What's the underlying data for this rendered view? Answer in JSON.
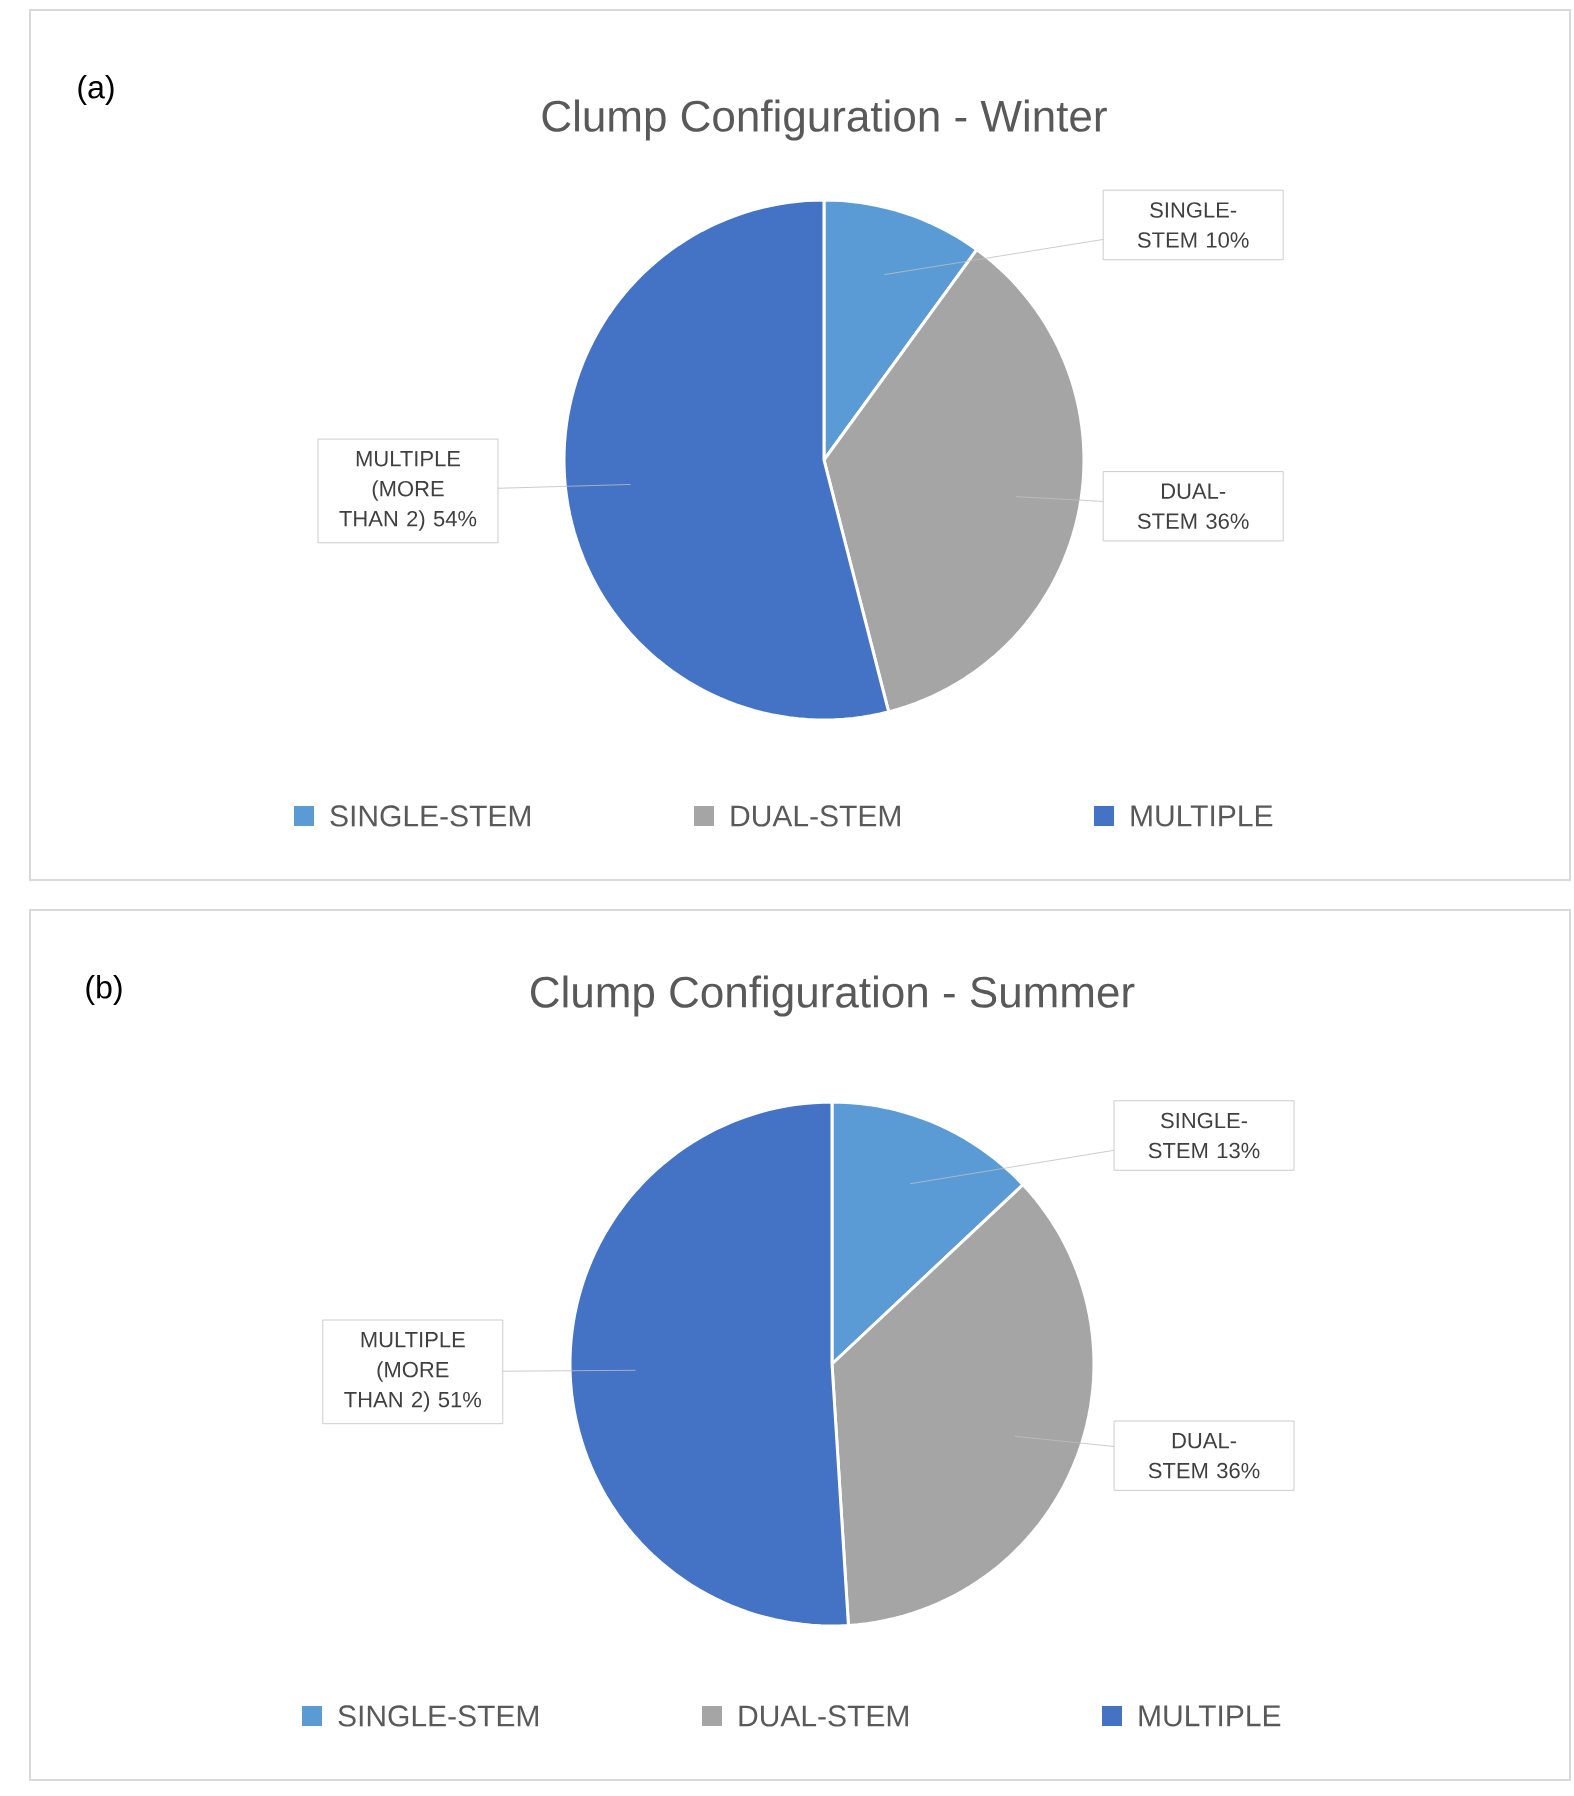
{
  "chart_data": [
    {
      "type": "pie",
      "title": "Clump Configuration - Winter",
      "annotations": [
        "(a)"
      ],
      "categories": [
        "SINGLE-STEM",
        "DUAL-STEM",
        "MULTIPLE"
      ],
      "values": [
        10,
        36,
        54
      ],
      "colors": [
        "#5b9bd5",
        "#a5a5a5",
        "#4472c4"
      ],
      "value_labels": [
        "SINGLE-STEM 10%",
        "DUAL-STEM 36%",
        "MULTIPLE (MORE THAN 2) 54%"
      ],
      "legend": "bottom"
    },
    {
      "type": "pie",
      "title": "Clump Configuration - Summer",
      "annotations": [
        "(b)"
      ],
      "categories": [
        "SINGLE-STEM",
        "DUAL-STEM",
        "MULTIPLE"
      ],
      "values": [
        13,
        36,
        51
      ],
      "colors": [
        "#5b9bd5",
        "#a5a5a5",
        "#4472c4"
      ],
      "value_labels": [
        "SINGLE-STEM 13%",
        "DUAL-STEM 36%",
        "MULTIPLE (MORE THAN 2) 51%"
      ],
      "legend": "bottom"
    }
  ]
}
